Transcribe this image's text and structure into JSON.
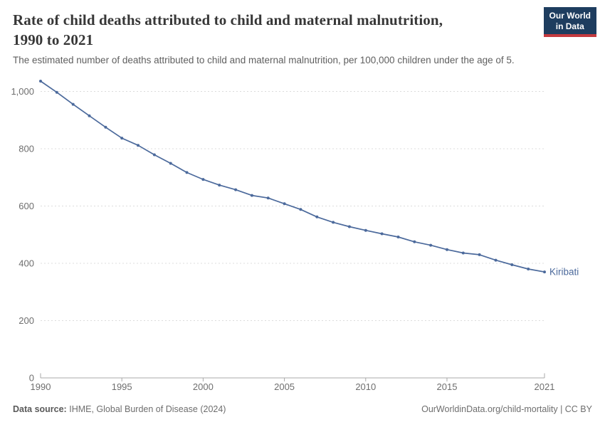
{
  "header": {
    "title": "Rate of child deaths attributed to child and maternal malnutrition,\n1990 to 2021",
    "subtitle": "The estimated number of deaths attributed to child and maternal malnutrition, per 100,000 children under the age of 5.",
    "logo_text": "Our World\nin Data",
    "logo_bg_color": "#1e3d5f",
    "logo_accent_color": "#c43a3f"
  },
  "chart_data": {
    "type": "line",
    "title": "Rate of child deaths attributed to child and maternal malnutrition, 1990 to 2021",
    "xlabel": "",
    "ylabel": "",
    "x": [
      1990,
      1991,
      1992,
      1993,
      1994,
      1995,
      1996,
      1997,
      1998,
      1999,
      2000,
      2001,
      2002,
      2003,
      2004,
      2005,
      2006,
      2007,
      2008,
      2009,
      2010,
      2011,
      2012,
      2013,
      2014,
      2015,
      2016,
      2017,
      2018,
      2019,
      2020,
      2021
    ],
    "series": [
      {
        "name": "Kiribati",
        "color": "#4c6a9c",
        "values": [
          1036,
          997,
          955,
          915,
          875,
          837,
          812,
          779,
          749,
          717,
          693,
          673,
          657,
          637,
          628,
          608,
          588,
          562,
          543,
          528,
          515,
          503,
          492,
          475,
          463,
          448,
          436,
          430,
          411,
          395,
          380,
          370
        ]
      }
    ],
    "xticks": [
      1990,
      1995,
      2000,
      2005,
      2010,
      2015,
      2021
    ],
    "yticks": [
      0,
      200,
      400,
      600,
      800,
      1000
    ],
    "ytick_labels": [
      "0",
      "200",
      "400",
      "600",
      "800",
      "1,000"
    ],
    "ylim": [
      0,
      1070
    ],
    "xlim": [
      1990,
      2021
    ],
    "grid": "horizontal-dashed",
    "legend": "end-of-line-label",
    "colors": {
      "line": "#4c6a9c",
      "entity_label": "#4c6a9c",
      "gridline": "#dcdcdc",
      "axis": "#a8a8a8",
      "tick_label": "#6e6e6e"
    }
  },
  "footer": {
    "data_source_label": "Data source:",
    "data_source_value": "IHME, Global Burden of Disease (2024)",
    "credit": "OurWorldinData.org/child-mortality | CC BY"
  }
}
